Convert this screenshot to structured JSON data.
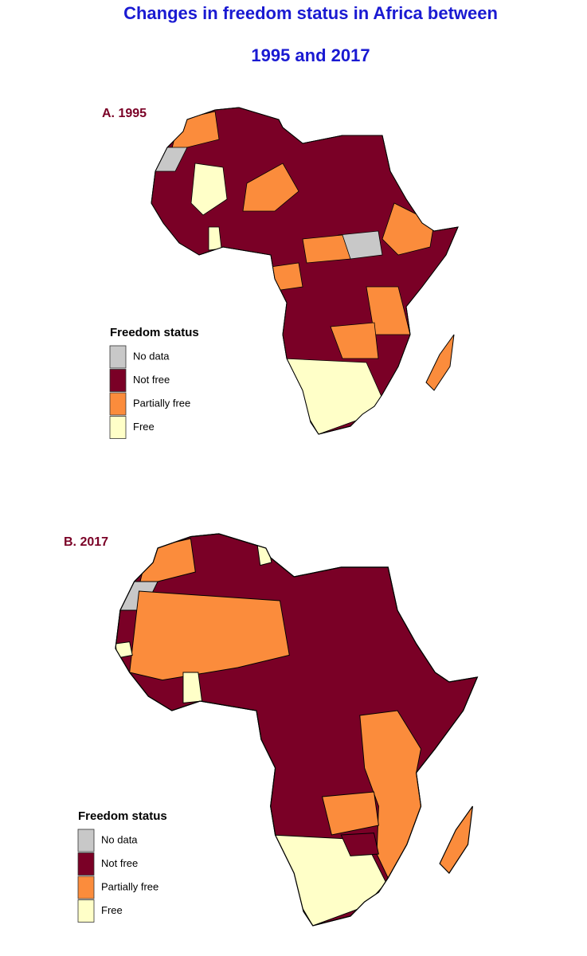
{
  "title_line1": "Changes in freedom status in Africa between",
  "title_line2": "1995 and 2017",
  "panels": [
    {
      "label": "A. 1995",
      "legend_title": "Freedom status"
    },
    {
      "label": "B. 2017",
      "legend_title": "Freedom status"
    }
  ],
  "legend": [
    {
      "label": "No data",
      "color": "#c8c8c8"
    },
    {
      "label": "Not free",
      "color": "#7a0026"
    },
    {
      "label": "Partially free",
      "color": "#fb8c3c"
    },
    {
      "label": "Free",
      "color": "#ffffc8"
    }
  ]
}
